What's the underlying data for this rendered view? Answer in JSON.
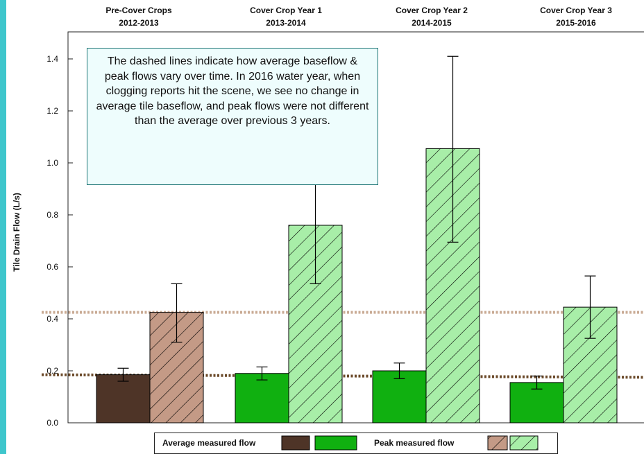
{
  "chart_data": {
    "type": "bar",
    "categories": [
      {
        "label": "Pre-Cover Crops",
        "years": "2012-2013"
      },
      {
        "label": "Cover Crop Year 1",
        "years": "2013-2014"
      },
      {
        "label": "Cover Crop Year 2",
        "years": "2014-2015"
      },
      {
        "label": "Cover Crop Year 3",
        "years": "2015-2016"
      }
    ],
    "series": [
      {
        "name": "Average measured flow",
        "values": [
          0.185,
          0.19,
          0.2,
          0.155
        ],
        "error_low": [
          0.16,
          0.165,
          0.17,
          0.13
        ],
        "error_high": [
          0.21,
          0.215,
          0.23,
          0.18
        ]
      },
      {
        "name": "Peak measured flow",
        "values": [
          0.425,
          0.76,
          1.055,
          0.445
        ],
        "error_low": [
          0.31,
          0.535,
          0.695,
          0.325
        ],
        "error_high": [
          0.535,
          0.985,
          1.41,
          0.565
        ]
      }
    ],
    "reference_lines": [
      {
        "style": "dotted",
        "color": "#c9ab95",
        "y": 0.425
      },
      {
        "style": "dotted",
        "color": "#6b4a2a",
        "y": [
          0.185,
          0.175
        ]
      }
    ],
    "ylabel": "Tile Drain Flow (L/s)",
    "ylim": [
      0,
      1.5
    ],
    "yticks": [
      "0.0",
      "0.2",
      "0.4",
      "0.6",
      "0.8",
      "1.0",
      "1.2",
      "1.4"
    ],
    "annotation": "The dashed lines indicate how average baseflow & peak flows vary over time. In 2016 water year, when clogging reports hit the scene, we see no change in average tile baseflow, and peak flows were not different than the average over previous 3 years.",
    "legend": {
      "position": "bottom",
      "average_label": "Average measured flow",
      "peak_label": "Peak measured flow"
    },
    "colors": {
      "pre_average": "#4e3427",
      "pre_peak": "#c49a86",
      "cover_average": "#10b010",
      "cover_peak": "#a8eea8",
      "accent": "#3ec6cc"
    },
    "grid": false
  }
}
